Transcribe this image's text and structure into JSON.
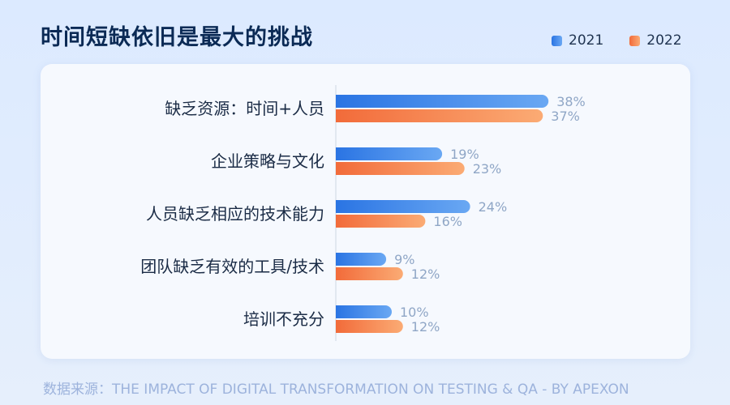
{
  "header": {
    "title": "时间短缺依旧是最大的挑战"
  },
  "legend": {
    "items": [
      {
        "label": "2021",
        "color": "#3c86ea"
      },
      {
        "label": "2022",
        "color": "#f6854e"
      }
    ]
  },
  "chart_data": {
    "type": "bar",
    "orientation": "horizontal",
    "title": "时间短缺依旧是最大的挑战",
    "categories": [
      "缺乏资源：时间+人员",
      "企业策略与文化",
      "人员缺乏相应的技术能力",
      "团队缺乏有效的工具/技术",
      "培训不充分"
    ],
    "series": [
      {
        "name": "2021",
        "values": [
          38,
          19,
          24,
          9,
          10
        ],
        "color": "#3c86ea"
      },
      {
        "name": "2022",
        "values": [
          37,
          23,
          16,
          12,
          12
        ],
        "color": "#f6854e"
      }
    ],
    "value_suffix": "%",
    "legend_position": "top-right",
    "grid": false
  },
  "footer": {
    "source": "数据来源：THE IMPACT OF DIGITAL TRANSFORMATION ON TESTING & QA - BY APEXON"
  }
}
